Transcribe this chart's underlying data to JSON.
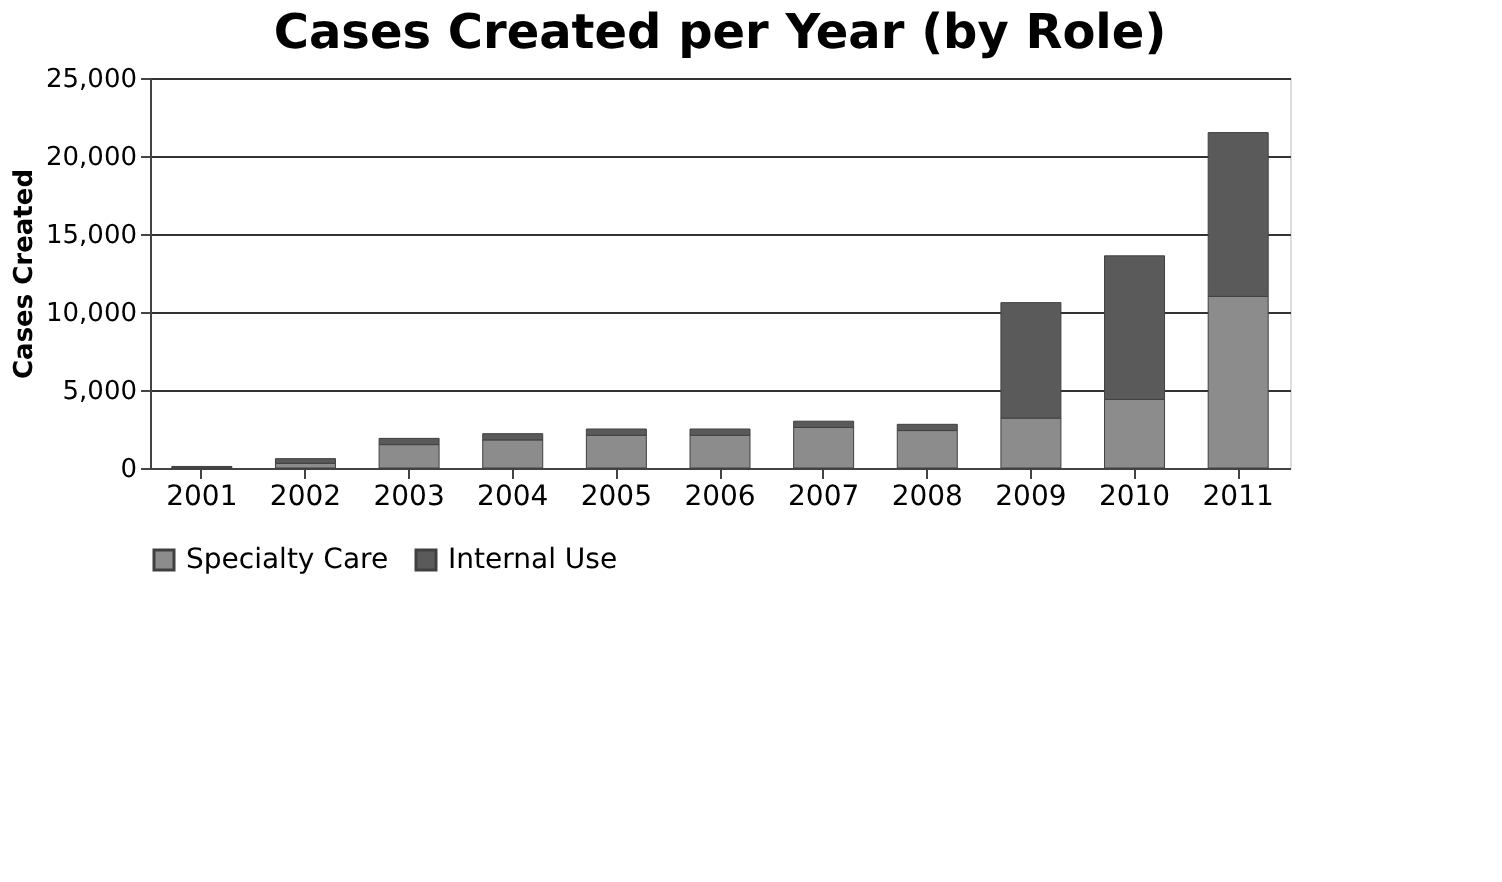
{
  "chart_data": {
    "type": "bar",
    "title": "Cases Created per Year (by Role)",
    "ylabel": "Cases Created",
    "categories": [
      "2001",
      "2002",
      "2003",
      "2004",
      "2005",
      "2006",
      "2007",
      "2008",
      "2009",
      "2010",
      "2011"
    ],
    "stacked": true,
    "series": [
      {
        "name": "Specialty Care",
        "color": "#8c8c8c",
        "values": [
          50,
          300,
          1500,
          1800,
          2100,
          2100,
          2600,
          2400,
          3200,
          4400,
          11000
        ]
      },
      {
        "name": "Internal Use",
        "color": "#5a5a5a",
        "values": [
          50,
          300,
          400,
          400,
          400,
          400,
          400,
          400,
          7400,
          9200,
          10500
        ]
      }
    ],
    "ylim": [
      0,
      25000
    ],
    "yticks": [
      {
        "value": 0,
        "label": "0"
      },
      {
        "value": 5000,
        "label": "5,000"
      },
      {
        "value": 10000,
        "label": "10,000"
      },
      {
        "value": 15000,
        "label": "15,000"
      },
      {
        "value": 20000,
        "label": "20,000"
      },
      {
        "value": 25000,
        "label": "25,000"
      }
    ],
    "grid": "y",
    "legend": "bottom"
  }
}
